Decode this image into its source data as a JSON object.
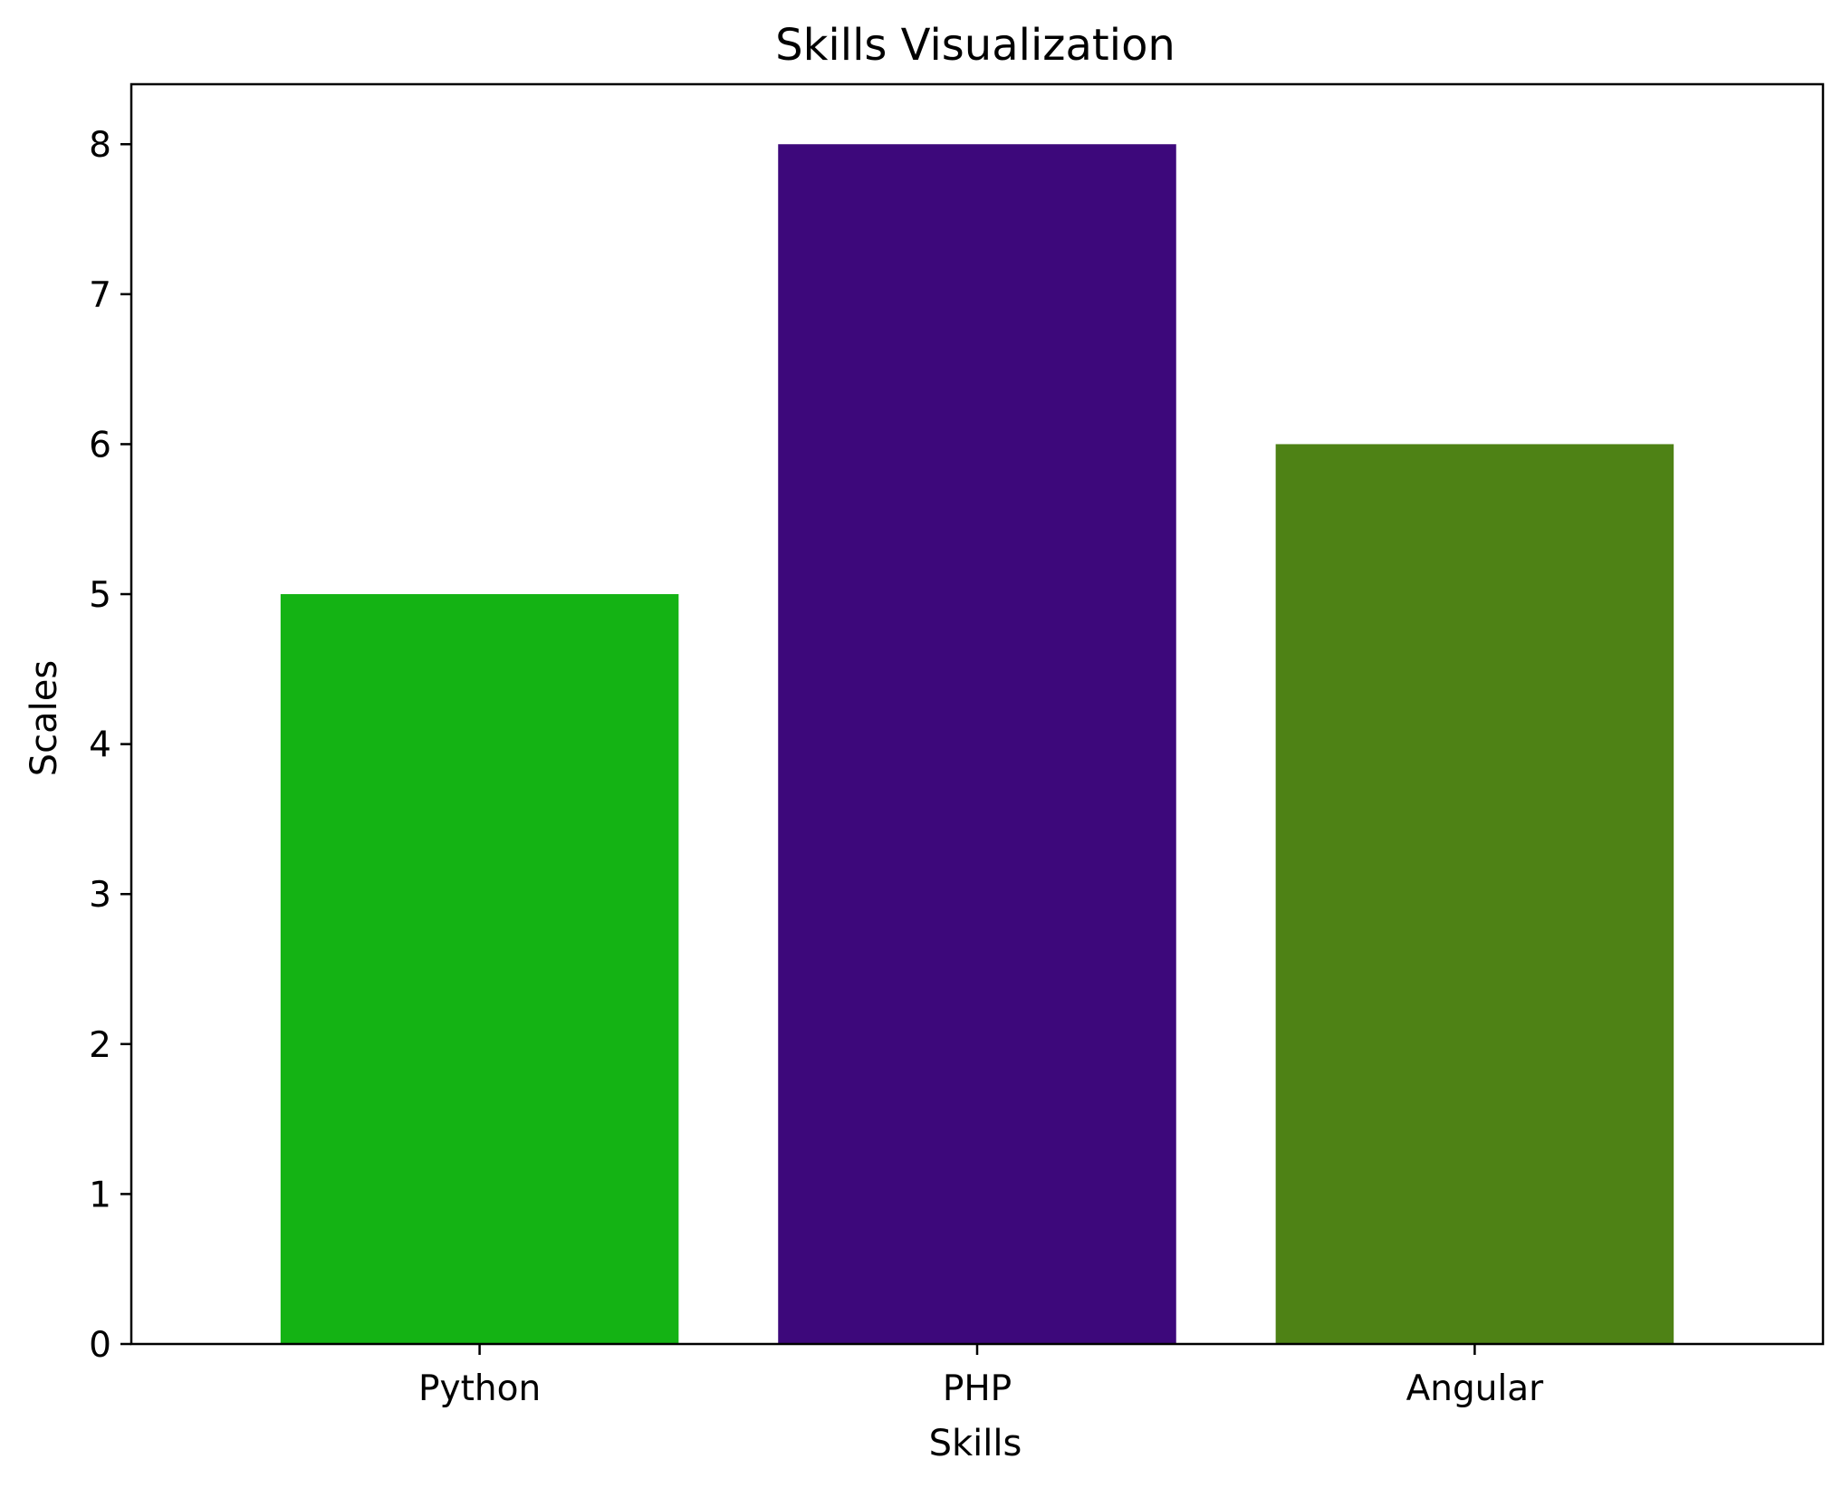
{
  "chart_data": {
    "type": "bar",
    "title": "Skills Visualization",
    "xlabel": "Skills",
    "ylabel": "Scales",
    "categories": [
      "Python",
      "PHP",
      "Angular"
    ],
    "values": [
      5,
      8,
      6
    ],
    "colors": [
      "#14b314",
      "#3d087b",
      "#4e8215"
    ],
    "ylim": [
      0,
      8.4
    ],
    "yticks": [
      0,
      1,
      2,
      3,
      4,
      5,
      6,
      7,
      8
    ],
    "grid": false,
    "legend": "none"
  }
}
